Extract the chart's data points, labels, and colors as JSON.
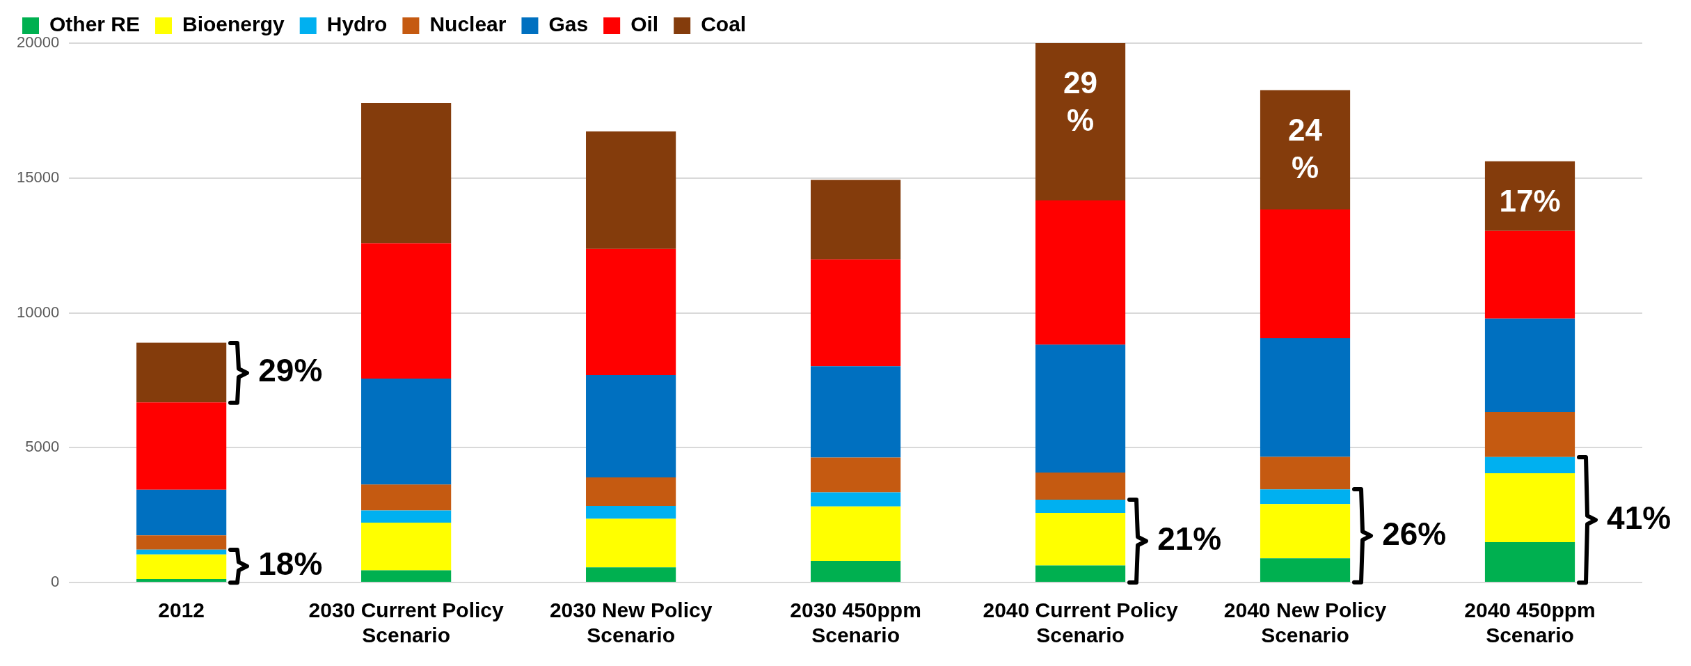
{
  "chart_data": {
    "type": "bar",
    "stacked": true,
    "legend": "top left",
    "grid": "y",
    "categories": [
      "2012",
      "2030 Current Policy Scenario",
      "2030 New Policy Scenario",
      "2030 450ppm Scenario",
      "2040 Current Policy Scenario",
      "2040 New Policy Scenario",
      "2040 450ppm Scenario"
    ],
    "ylim": [
      0,
      20000
    ],
    "yticks": [
      0,
      5000,
      10000,
      15000,
      20000
    ],
    "series": [
      {
        "name": "Other RE",
        "color": "#00b050",
        "values": [
          130,
          450,
          560,
          800,
          630,
          900,
          1500
        ]
      },
      {
        "name": "Bioenergy",
        "color": "#ffff00",
        "values": [
          910,
          1770,
          1800,
          2020,
          1950,
          2010,
          2550
        ]
      },
      {
        "name": "Hydro",
        "color": "#00b0f0",
        "values": [
          180,
          450,
          480,
          520,
          490,
          540,
          600
        ]
      },
      {
        "name": "Nuclear",
        "color": "#c55a11",
        "values": [
          530,
          960,
          1060,
          1290,
          1010,
          1210,
          1670
        ]
      },
      {
        "name": "Gas",
        "color": "#0070c0",
        "values": [
          1690,
          3930,
          3790,
          3390,
          4740,
          4400,
          3470
        ]
      },
      {
        "name": "Oil",
        "color": "#ff0000",
        "values": [
          3240,
          5020,
          4680,
          3960,
          5350,
          4770,
          3250
        ]
      },
      {
        "name": "Coal",
        "color": "#843c0c",
        "values": [
          2210,
          5200,
          4360,
          2950,
          5830,
          4430,
          2580
        ]
      }
    ],
    "annotations": [
      "29%",
      "18%",
      "21%",
      "26%",
      "41%",
      "29%",
      "24%",
      "17%"
    ]
  }
}
